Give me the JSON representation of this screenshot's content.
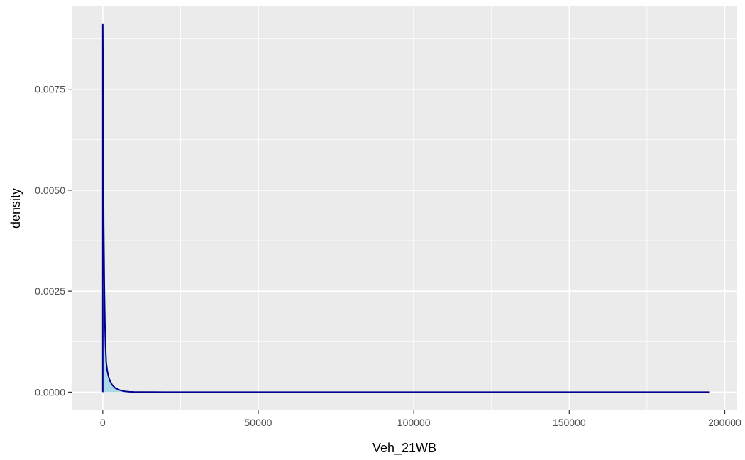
{
  "chart_data": {
    "type": "area",
    "title": "",
    "xlabel": "Veh_21WB",
    "ylabel": "density",
    "xlim": [
      -10000,
      204000
    ],
    "ylim": [
      -0.00045,
      0.00955
    ],
    "x_ticks": [
      0,
      50000,
      100000,
      150000,
      200000
    ],
    "x_tick_labels": [
      "0",
      "50000",
      "100000",
      "150000",
      "200000"
    ],
    "y_ticks": [
      0.0,
      0.0025,
      0.005,
      0.0075
    ],
    "y_tick_labels": [
      "0.0000",
      "0.0025",
      "0.0050",
      "0.0075"
    ],
    "grid": true,
    "legend": "none",
    "series": [
      {
        "x": [
          0,
          150,
          300,
          500,
          700,
          900,
          1100,
          1400,
          1800,
          2300,
          3000,
          4000,
          5500,
          7000,
          8500,
          10000,
          20000,
          50000,
          100000,
          150000,
          195000
        ],
        "y": [
          0.0091,
          0.0066,
          0.0041,
          0.0026,
          0.0017,
          0.0011,
          0.00075,
          0.00055,
          0.0004,
          0.00028,
          0.00018,
          0.0001,
          5e-05,
          2e-05,
          1e-05,
          5e-06,
          1e-06,
          5e-07,
          2e-07,
          1e-07,
          1e-07
        ]
      }
    ],
    "colors": {
      "panel": "#ebebeb",
      "grid": "#ffffff",
      "line": "#00008b",
      "fill": "#add8e6"
    }
  }
}
